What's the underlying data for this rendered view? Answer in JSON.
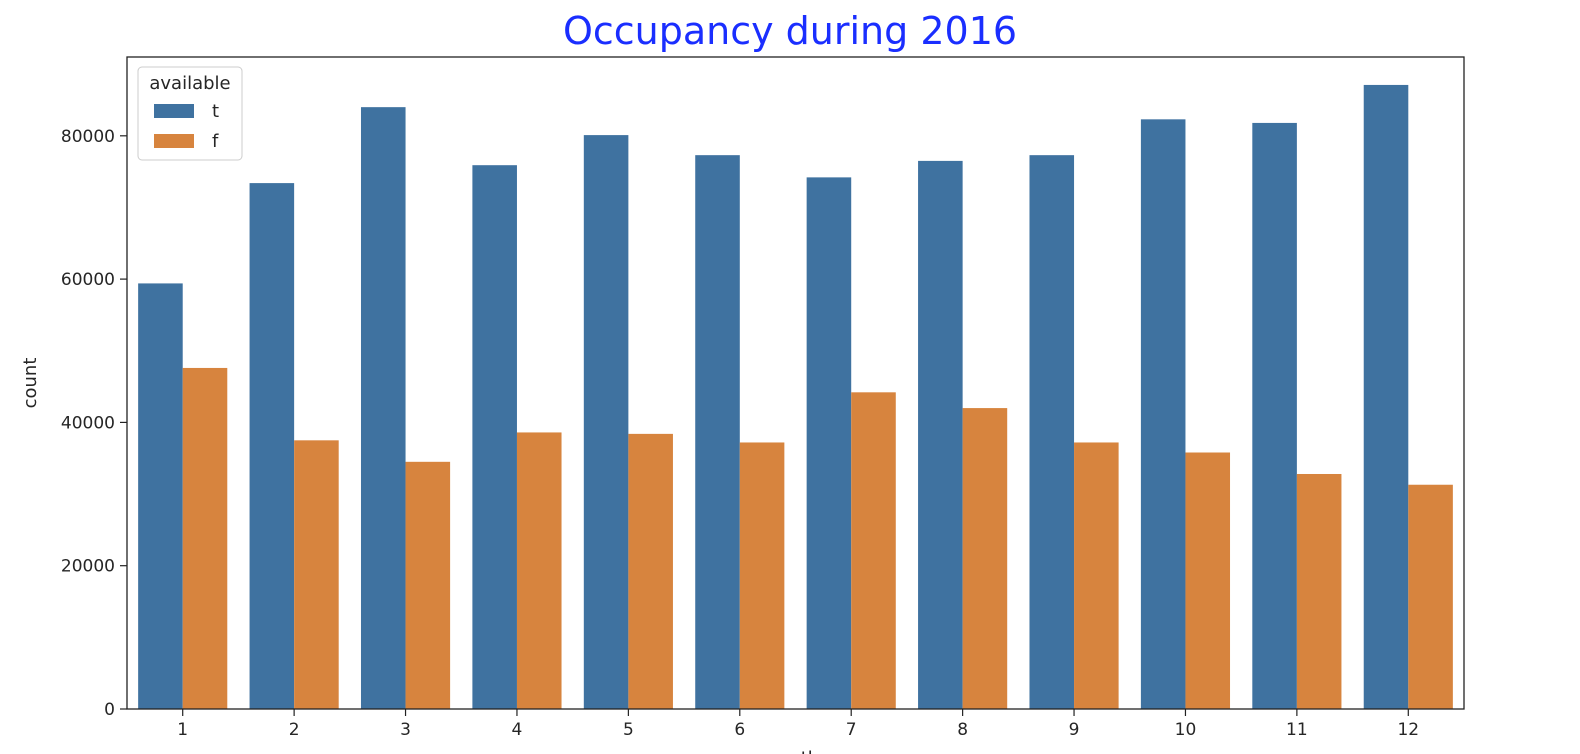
{
  "chart_data": {
    "type": "bar",
    "title": "Occupancy during 2016",
    "xlabel": "month",
    "ylabel": "count",
    "categories": [
      "1",
      "2",
      "3",
      "4",
      "5",
      "6",
      "7",
      "8",
      "9",
      "10",
      "11",
      "12"
    ],
    "series": [
      {
        "name": "t",
        "color": "#3f72a0",
        "values": [
          59400,
          73400,
          84000,
          75900,
          80100,
          77300,
          74200,
          76500,
          77300,
          82300,
          81800,
          87100
        ]
      },
      {
        "name": "f",
        "color": "#d7843e",
        "values": [
          47600,
          37500,
          34500,
          38600,
          38400,
          37200,
          44200,
          42000,
          37200,
          35800,
          32800,
          31300
        ]
      }
    ],
    "legend": {
      "title": "available",
      "position": "top-left"
    },
    "ylim": [
      0,
      91000
    ],
    "yticks": [
      0,
      20000,
      40000,
      60000,
      80000
    ],
    "title_color": "#1a2eff",
    "grid": false
  }
}
